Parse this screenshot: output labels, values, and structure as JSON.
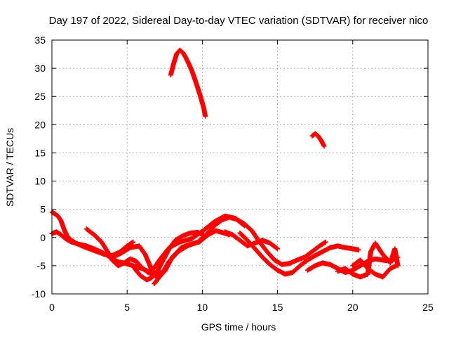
{
  "chart_data": {
    "type": "scatter",
    "title": "Day 197 of 2022, Sidereal Day-to-day VTEC variation (SDTVAR) for receiver nico",
    "xlabel": "GPS time / hours",
    "ylabel": "SDTVAR / TECUs",
    "xlim": [
      0,
      25
    ],
    "ylim": [
      -10,
      35
    ],
    "xticks": [
      0,
      5,
      10,
      15,
      20,
      25
    ],
    "yticks": [
      -10,
      -5,
      0,
      5,
      10,
      15,
      20,
      25,
      30,
      35
    ],
    "grid": true,
    "legend": "none",
    "marker": "+",
    "series_color": "#ff0000",
    "series": [
      {
        "name": "track-1",
        "x": [
          0.0,
          0.3,
          0.6,
          0.9,
          1.3,
          1.8,
          2.3,
          2.8,
          3.3,
          3.7,
          4.0,
          4.4,
          4.9,
          5.4,
          6.0,
          6.4,
          6.8,
          7.2,
          7.8,
          8.5,
          9.3,
          10.1,
          10.8,
          11.5,
          12.2,
          12.8
        ],
        "y": [
          0.7,
          1.0,
          0.5,
          -0.2,
          -0.8,
          -1.2,
          -1.5,
          -2.0,
          -2.6,
          -3.2,
          -3.8,
          -4.3,
          -4.6,
          -5.0,
          -5.5,
          -6.0,
          -5.4,
          -3.8,
          -1.8,
          -0.8,
          -0.2,
          1.3,
          2.8,
          3.8,
          3.4,
          2.1
        ]
      },
      {
        "name": "track-2",
        "x": [
          0.0,
          0.2,
          0.4,
          0.6,
          0.8,
          1.0,
          1.3,
          1.6,
          2.0,
          2.5,
          3.0,
          3.5,
          4.0,
          4.5,
          5.0,
          5.4
        ],
        "y": [
          4.5,
          4.2,
          3.8,
          3.0,
          1.5,
          0.3,
          -0.5,
          -1.0,
          -1.5,
          -2.0,
          -2.5,
          -3.0,
          -3.2,
          -2.6,
          -1.5,
          -0.8
        ]
      },
      {
        "name": "track-3",
        "x": [
          2.3,
          2.8,
          3.3,
          3.7,
          4.0,
          4.4,
          4.8,
          5.2,
          5.6,
          6.0,
          6.4,
          6.8,
          7.2
        ],
        "y": [
          1.5,
          0.5,
          -0.8,
          -2.5,
          -4.0,
          -5.0,
          -4.5,
          -3.8,
          -4.2,
          -5.4,
          -6.2,
          -6.6,
          -6.0
        ]
      },
      {
        "name": "track-4",
        "x": [
          4.0,
          4.6,
          5.2,
          5.8,
          6.2,
          6.6,
          7.0,
          7.5,
          8.0,
          8.6,
          9.2,
          9.8,
          10.4,
          10.9,
          11.3,
          11.8
        ],
        "y": [
          -3.5,
          -2.8,
          -1.8,
          -1.5,
          -3.0,
          -5.5,
          -7.2,
          -6.0,
          -3.5,
          -1.8,
          -1.2,
          -0.8,
          0.5,
          1.2,
          0.9,
          0.5
        ]
      },
      {
        "name": "track-5",
        "x": [
          5.5,
          5.9,
          6.3,
          6.6,
          7.0,
          7.4,
          7.8,
          8.2,
          8.7,
          9.2,
          9.7,
          10.1
        ],
        "y": [
          -5.5,
          -6.8,
          -7.5,
          -7.2,
          -6.0,
          -4.0,
          -2.0,
          -0.5,
          0.3,
          0.8,
          0.9,
          0.4
        ]
      },
      {
        "name": "track-6",
        "x": [
          6.8,
          7.3,
          7.8,
          8.4,
          9.0,
          9.7,
          10.3,
          10.8,
          11.3,
          11.8,
          12.3,
          12.8,
          13.3,
          13.8,
          14.3,
          14.8,
          15.3,
          15.8,
          16.3,
          16.8,
          17.3,
          17.8,
          18.2
        ],
        "y": [
          -8.2,
          -6.5,
          -4.2,
          -2.5,
          -1.5,
          -0.8,
          0.6,
          2.1,
          3.1,
          3.6,
          3.2,
          2.4,
          1.2,
          -0.8,
          -2.5,
          -4.0,
          -4.8,
          -4.6,
          -4.0,
          -3.5,
          -2.5,
          -1.5,
          -0.8
        ]
      },
      {
        "name": "track-7",
        "x": [
          11.5,
          12.0,
          12.5,
          13.0,
          13.5,
          14.0,
          14.5,
          15.0
        ],
        "y": [
          1.0,
          0.5,
          -0.5,
          -1.5,
          -1.0,
          -0.5,
          -1.0,
          -2.0
        ]
      },
      {
        "name": "track-8",
        "x": [
          12.5,
          13.0,
          13.5,
          14.0,
          14.5,
          15.0,
          15.5,
          16.0,
          16.5,
          17.0,
          17.5,
          18.0,
          18.5,
          19.0,
          19.5,
          20.0,
          20.4
        ],
        "y": [
          0.8,
          -0.5,
          -2.0,
          -3.5,
          -4.8,
          -5.8,
          -6.5,
          -6.2,
          -5.0,
          -4.0,
          -3.2,
          -2.5,
          -1.8,
          -1.5,
          -1.8,
          -2.0,
          -2.2
        ]
      },
      {
        "name": "track-9",
        "x": [
          17.0,
          17.5,
          18.0,
          18.5,
          19.0,
          19.5,
          20.0,
          20.5,
          21.0,
          21.5,
          22.0,
          22.5,
          23.0
        ],
        "y": [
          -5.8,
          -5.0,
          -4.5,
          -4.8,
          -5.5,
          -6.2,
          -5.8,
          -5.0,
          -4.2,
          -3.8,
          -4.0,
          -4.2,
          -3.5
        ]
      },
      {
        "name": "track-10",
        "x": [
          19.0,
          19.5,
          20.0,
          20.5,
          21.0,
          21.2,
          21.5,
          22.0,
          22.5,
          22.8,
          23.0
        ],
        "y": [
          -6.0,
          -5.5,
          -6.5,
          -7.0,
          -6.5,
          -2.5,
          -1.0,
          -3.0,
          -4.5,
          -2.0,
          -5.0
        ]
      },
      {
        "name": "track-11",
        "x": [
          20.0,
          20.5,
          21.0,
          21.5,
          22.0,
          22.5,
          22.9
        ],
        "y": [
          -5.0,
          -4.0,
          -5.5,
          -6.5,
          -7.0,
          -5.5,
          -5.0
        ]
      },
      {
        "name": "track-12",
        "x": [
          7.9,
          8.1,
          8.3,
          8.5,
          8.7,
          8.9,
          9.1,
          9.3,
          9.5,
          9.7,
          9.9,
          10.1,
          10.2
        ],
        "y": [
          28.8,
          30.9,
          32.6,
          33.2,
          32.8,
          31.9,
          30.8,
          29.6,
          28.1,
          26.5,
          24.8,
          22.9,
          21.5
        ]
      },
      {
        "name": "track-13",
        "x": [
          17.3,
          17.5,
          17.7,
          17.9,
          18.1
        ],
        "y": [
          18.0,
          18.4,
          18.0,
          17.2,
          16.2
        ]
      }
    ]
  }
}
